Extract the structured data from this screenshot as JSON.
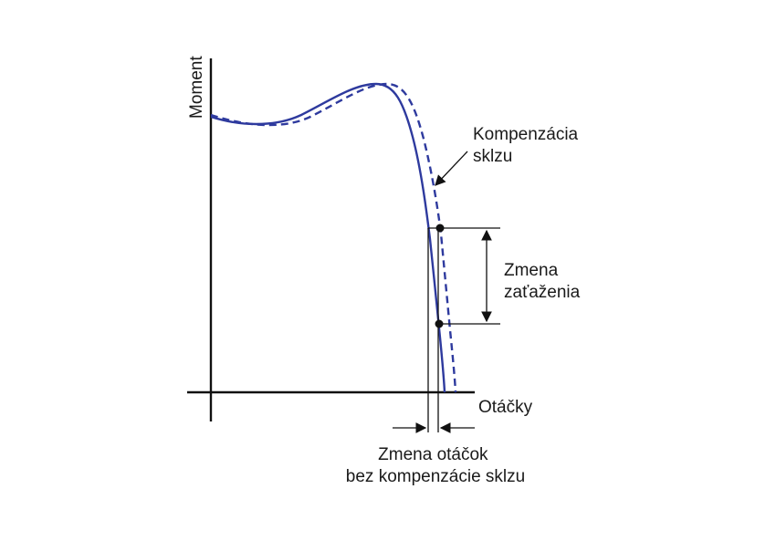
{
  "diagram": {
    "y_axis_label": "Moment",
    "x_axis_label": "Otáčky",
    "annotation_compensation": [
      "Kompenzácia",
      "sklzu"
    ],
    "annotation_load_change": [
      "Zmena",
      "zaťaženia"
    ],
    "annotation_speed_change": [
      "Zmena otáčok",
      "bez kompenzácie sklzu"
    ],
    "colors": {
      "curve_solid": "#2e3a9e",
      "curve_dashed": "#2e3a9e",
      "axes": "#111111"
    },
    "curves": [
      {
        "style": "solid",
        "meaning": "without slip compensation"
      },
      {
        "style": "dashed",
        "meaning": "with slip compensation"
      }
    ],
    "icons": [
      "arrow-icon",
      "double-arrow-icon",
      "point-marker-icon"
    ]
  }
}
